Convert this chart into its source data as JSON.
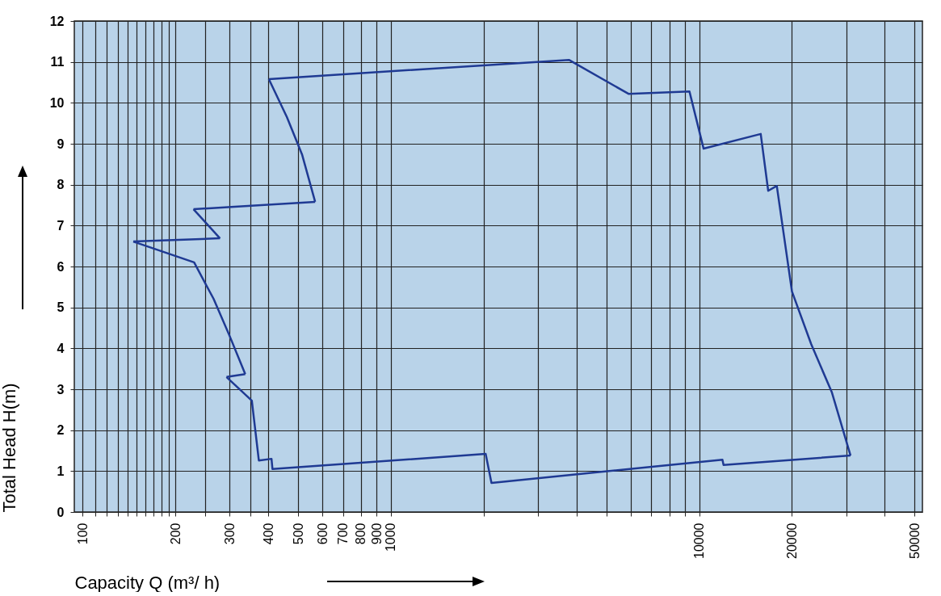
{
  "chart_data": {
    "type": "line",
    "xlabel": "Capacity Q (m³/ h)",
    "ylabel": "Total Head H(m)",
    "series": [
      {
        "color": "#1f3a93",
        "x": [
          402,
          3780,
          5900,
          9300,
          10340,
          15840,
          16750,
          17860,
          20000,
          23100,
          26960,
          30980
        ],
        "values": [
          10.58,
          11.05,
          10.22,
          10.28,
          8.88,
          9.24,
          7.85,
          7.97,
          5.39,
          4.1,
          2.92,
          1.38
        ]
      },
      {
        "color": "#1f3a93",
        "x": [
          30980,
          12000,
          11900,
          2120,
          2030,
          413,
          410,
          373,
          354,
          293
        ],
        "values": [
          1.38,
          1.15,
          1.28,
          0.71,
          1.42,
          1.05,
          1.3,
          1.26,
          2.72,
          3.3
        ]
      },
      {
        "color": "#1f3a93",
        "x": [
          293,
          337
        ],
        "values": [
          3.3,
          3.37
        ]
      },
      {
        "color": "#1f3a93",
        "x": [
          337,
          300,
          266,
          230,
          146
        ],
        "values": [
          3.37,
          4.3,
          5.21,
          6.1,
          6.61
        ]
      },
      {
        "color": "#1f3a93",
        "x": [
          146,
          279
        ],
        "values": [
          6.61,
          6.69
        ]
      },
      {
        "color": "#1f3a93",
        "x": [
          279,
          229
        ],
        "values": [
          6.69,
          7.4
        ]
      },
      {
        "color": "#1f3a93",
        "x": [
          229,
          568
        ],
        "values": [
          7.4,
          7.58
        ]
      },
      {
        "color": "#1f3a93",
        "x": [
          568,
          515,
          460,
          402
        ],
        "values": [
          7.58,
          8.74,
          9.65,
          10.58
        ]
      }
    ],
    "log": "x",
    "xlim": [
      94,
      53000
    ],
    "ylim": [
      0,
      12
    ],
    "xticks": [
      100,
      {
        "value": 110,
        "label": null
      },
      {
        "value": 120,
        "label": null
      },
      {
        "value": 130,
        "label": null
      },
      {
        "value": 140,
        "label": null
      },
      {
        "value": 150,
        "label": null
      },
      {
        "value": 160,
        "label": null
      },
      {
        "value": 170,
        "label": null
      },
      {
        "value": 180,
        "label": null
      },
      {
        "value": 190,
        "label": null
      },
      200,
      {
        "value": 250,
        "label": null
      },
      300,
      {
        "value": 350,
        "label": null
      },
      400,
      500,
      600,
      700,
      800,
      900,
      1000,
      {
        "value": 2000,
        "label": null
      },
      {
        "value": 3000,
        "label": null
      },
      {
        "value": 4000,
        "label": null
      },
      {
        "value": 5000,
        "label": null
      },
      {
        "value": 6000,
        "label": null
      },
      {
        "value": 7000,
        "label": null
      },
      {
        "value": 8000,
        "label": null
      },
      {
        "value": 9000,
        "label": null
      },
      10000,
      20000,
      {
        "value": 30000,
        "label": null
      },
      {
        "value": 40000,
        "label": null
      },
      50000
    ],
    "yticks": [
      0,
      1,
      2,
      3,
      4,
      5,
      6,
      7,
      8,
      9,
      10,
      11,
      12
    ],
    "grid": true
  }
}
